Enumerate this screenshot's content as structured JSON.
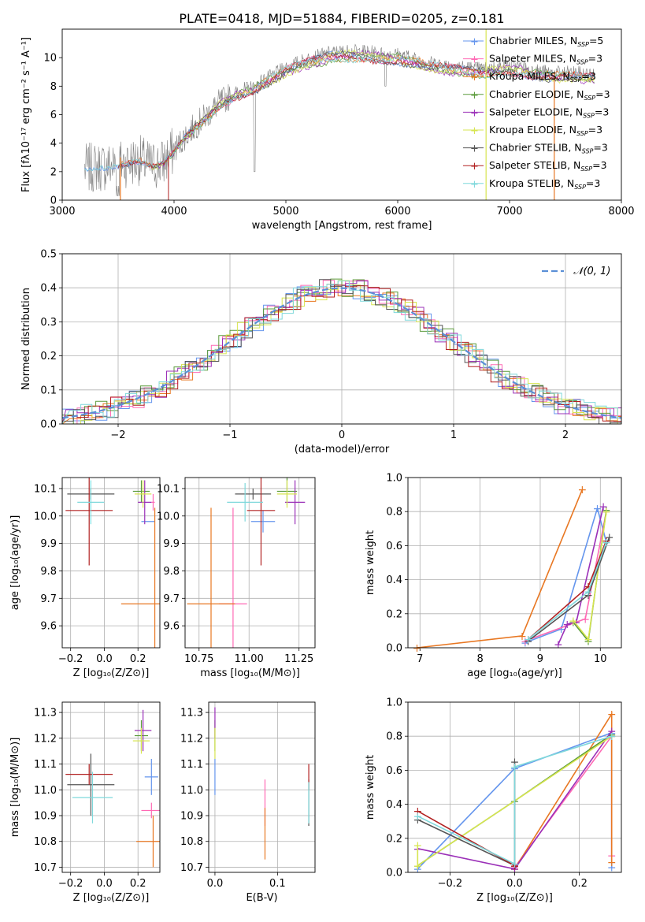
{
  "title": "PLATE=0418, MJD=51884, FIBERID=0205, z=0.181",
  "colors": {
    "chabrier_miles": "#6495ED",
    "salpeter_miles": "#FF69B4",
    "kroupa_miles": "#E87722",
    "chabrier_elodie": "#5A9A3A",
    "salpeter_elodie": "#9B30B8",
    "kroupa_elodie": "#D7E550",
    "chabrier_stelib": "#555555",
    "salpeter_stelib": "#B22222",
    "kroupa_stelib": "#7FD8DB",
    "data": "#808080",
    "gauss": "#5B8FD6"
  },
  "chart_data": [
    {
      "type": "line",
      "title": "PLATE=0418, MJD=51884, FIBERID=0205, z=0.181",
      "xlabel": "wavelength [Angstrom, rest frame]",
      "ylabel": "Flux [fλ10⁻¹⁷ erg cm⁻² s⁻¹ A⁻¹]",
      "xlim": [
        3000,
        8000
      ],
      "ylim": [
        0,
        12
      ],
      "xticks": [
        "3000",
        "4000",
        "5000",
        "6000",
        "7000",
        "8000"
      ],
      "yticks": [
        "0",
        "2",
        "4",
        "6",
        "8",
        "10"
      ],
      "legend_position": "right",
      "legend": [
        {
          "key": "chabrier_miles",
          "label": "Chabrier MILES, N",
          "sub": "SSP",
          "suffix": "=5"
        },
        {
          "key": "salpeter_miles",
          "label": "Salpeter MILES, N",
          "sub": "SSP",
          "suffix": "=3"
        },
        {
          "key": "kroupa_miles",
          "label": "Kroupa MILES, N",
          "sub": "SSP",
          "suffix": "=3"
        },
        {
          "key": "chabrier_elodie",
          "label": "Chabrier ELODIE, N",
          "sub": "SSP",
          "suffix": "=3"
        },
        {
          "key": "salpeter_elodie",
          "label": "Salpeter ELODIE, N",
          "sub": "SSP",
          "suffix": "=3"
        },
        {
          "key": "kroupa_elodie",
          "label": "Kroupa ELODIE, N",
          "sub": "SSP",
          "suffix": "=3"
        },
        {
          "key": "chabrier_stelib",
          "label": "Chabrier STELIB, N",
          "sub": "SSP",
          "suffix": "=3"
        },
        {
          "key": "salpeter_stelib",
          "label": "Salpeter STELIB, N",
          "sub": "SSP",
          "suffix": "=3"
        },
        {
          "key": "kroupa_stelib",
          "label": "Kroupa STELIB, N",
          "sub": "SSP",
          "suffix": "=3"
        }
      ],
      "continuum": {
        "x": [
          3200,
          3300,
          3400,
          3500,
          3600,
          3700,
          3800,
          3900,
          4000,
          4100,
          4200,
          4300,
          4400,
          4500,
          4600,
          4700,
          4800,
          4900,
          5000,
          5100,
          5200,
          5300,
          5400,
          5500,
          5600,
          5700,
          5800,
          5900,
          6000,
          6100,
          6200,
          6300,
          6400,
          6500,
          6600,
          6700,
          6800,
          6900,
          7000,
          7100,
          7200,
          7300,
          7400,
          7500,
          7600,
          7700
        ],
        "y": [
          2.2,
          2.3,
          2.4,
          2.5,
          2.7,
          2.8,
          2.4,
          2.6,
          3.5,
          4.5,
          5.3,
          6.0,
          6.8,
          7.3,
          7.7,
          7.9,
          8.4,
          8.8,
          9.3,
          9.6,
          9.9,
          10.1,
          10.3,
          10.4,
          10.4,
          10.4,
          10.3,
          10.2,
          10.2,
          10.0,
          9.8,
          9.6,
          9.5,
          9.4,
          9.3,
          9.2,
          9.2,
          9.3,
          9.4,
          9.3,
          9.1,
          9.0,
          8.9,
          8.9,
          8.9,
          8.8
        ]
      }
    },
    {
      "type": "line",
      "xlabel": "(data-model)/error",
      "ylabel": "Normed distribution",
      "xlim": [
        -2.5,
        2.5
      ],
      "ylim": [
        0,
        0.5
      ],
      "xticks": [
        "−2",
        "−1",
        "0",
        "1",
        "2"
      ],
      "yticks": [
        "0.0",
        "0.1",
        "0.2",
        "0.3",
        "0.4",
        "0.5"
      ],
      "legend": {
        "label": "𝒩(0, 1)"
      },
      "legend_position": "top-right",
      "series": [
        {
          "name": "𝒩(0, 1)",
          "mu": 0,
          "sigma": 1
        }
      ]
    },
    {
      "type": "scatter",
      "xlabel": "Z [log₁₀(Z/Z⊙)]",
      "ylabel": "age  [log₁₀(age/yr)]",
      "xlim": [
        -0.25,
        0.33
      ],
      "ylim": [
        9.52,
        10.14
      ],
      "xticks": [
        "−0.2",
        "0.0",
        "0.2"
      ],
      "xtick_values": [
        -0.2,
        0,
        0.2
      ],
      "yticks": [
        "9.6",
        "9.7",
        "9.8",
        "9.9",
        "10.0",
        "10.1"
      ],
      "ytick_values": [
        9.6,
        9.7,
        9.8,
        9.9,
        10.0,
        10.1
      ],
      "points": [
        {
          "s": "chabrier_miles",
          "x": 0.26,
          "y": 9.98,
          "xe": 0.04,
          "ye": 0.0
        },
        {
          "s": "salpeter_miles",
          "x": 0.29,
          "y": 10.05,
          "xe": 0.01,
          "ye": 0.03
        },
        {
          "s": "kroupa_miles",
          "x": 0.3,
          "y": 9.68,
          "xe": 0.2,
          "ye": 0.35
        },
        {
          "s": "chabrier_elodie",
          "x": 0.22,
          "y": 10.09,
          "xe": 0.05,
          "ye": 0.04
        },
        {
          "s": "salpeter_elodie",
          "x": 0.24,
          "y": 10.05,
          "xe": 0.04,
          "ye": 0.08
        },
        {
          "s": "kroupa_elodie",
          "x": 0.23,
          "y": 10.08,
          "xe": 0.05,
          "ye": 0.05
        },
        {
          "s": "chabrier_stelib",
          "x": -0.08,
          "y": 10.08,
          "xe": 0.14,
          "ye": 0.02
        },
        {
          "s": "salpeter_stelib",
          "x": -0.09,
          "y": 10.02,
          "xe": 0.14,
          "ye": 0.2
        },
        {
          "s": "kroupa_stelib",
          "x": -0.08,
          "y": 10.05,
          "xe": 0.08,
          "ye": 0.08
        }
      ]
    },
    {
      "type": "scatter",
      "xlabel": "mass [log₁₀(M/M⊙)]",
      "xlim": [
        10.68,
        11.33
      ],
      "ylim": [
        9.52,
        10.14
      ],
      "xticks": [
        "10.75",
        "11.00",
        "11.25"
      ],
      "xtick_values": [
        10.75,
        11.0,
        11.25
      ],
      "yticks": [
        "9.6",
        "9.7",
        "9.8",
        "9.9",
        "10.0",
        "10.1"
      ],
      "ytick_values": [
        9.6,
        9.7,
        9.8,
        9.9,
        10.0,
        10.1
      ],
      "points": [
        {
          "s": "chabrier_miles",
          "x": 11.07,
          "y": 9.98,
          "xe": 0.06,
          "ye": 0.04
        },
        {
          "s": "salpeter_miles",
          "x": 10.92,
          "y": 9.68,
          "xe": 0.07,
          "ye": 0.35
        },
        {
          "s": "kroupa_miles",
          "x": 10.81,
          "y": 9.68,
          "xe": 0.12,
          "ye": 0.35
        },
        {
          "s": "chabrier_elodie",
          "x": 11.19,
          "y": 10.09,
          "xe": 0.05,
          "ye": 0.05
        },
        {
          "s": "salpeter_elodie",
          "x": 11.23,
          "y": 10.05,
          "xe": 0.05,
          "ye": 0.08
        },
        {
          "s": "kroupa_elodie",
          "x": 11.19,
          "y": 10.08,
          "xe": 0.05,
          "ye": 0.05
        },
        {
          "s": "chabrier_stelib",
          "x": 11.02,
          "y": 10.08,
          "xe": 0.09,
          "ye": 0.02
        },
        {
          "s": "salpeter_stelib",
          "x": 11.06,
          "y": 10.02,
          "xe": 0.07,
          "ye": 0.2
        },
        {
          "s": "kroupa_stelib",
          "x": 10.98,
          "y": 10.05,
          "xe": 0.09,
          "ye": 0.07
        }
      ]
    },
    {
      "type": "line",
      "xlabel": "age  [log₁₀(age/yr)]",
      "ylabel": "mass weight",
      "xlim": [
        6.8,
        10.35
      ],
      "ylim": [
        0,
        1.0
      ],
      "xticks": [
        "7",
        "8",
        "9",
        "10"
      ],
      "xtick_values": [
        7,
        8,
        9,
        10
      ],
      "yticks": [
        "0.0",
        "0.2",
        "0.4",
        "0.6",
        "0.8",
        "1.0"
      ],
      "ytick_values": [
        0,
        0.2,
        0.4,
        0.6,
        0.8,
        1.0
      ],
      "series": [
        {
          "s": "chabrier_miles",
          "x": [
            8.75,
            9.35,
            9.95,
            10.1
          ],
          "y": [
            0.03,
            0.11,
            0.82,
            0.62
          ]
        },
        {
          "s": "salpeter_miles",
          "x": [
            8.75,
            9.75,
            10.1
          ],
          "y": [
            0.04,
            0.17,
            0.8
          ]
        },
        {
          "s": "kroupa_miles",
          "x": [
            6.95,
            8.7,
            9.7
          ],
          "y": [
            0.0,
            0.07,
            0.93
          ]
        },
        {
          "s": "chabrier_elodie",
          "x": [
            9.55,
            9.8,
            10.1
          ],
          "y": [
            0.15,
            0.04,
            0.81
          ]
        },
        {
          "s": "salpeter_elodie",
          "x": [
            9.3,
            9.45,
            9.6,
            10.05
          ],
          "y": [
            0.02,
            0.14,
            0.15,
            0.83
          ]
        },
        {
          "s": "kroupa_elodie",
          "x": [
            9.55,
            9.8,
            10.1
          ],
          "y": [
            0.16,
            0.05,
            0.8
          ]
        },
        {
          "s": "chabrier_stelib",
          "x": [
            8.8,
            9.8,
            10.15
          ],
          "y": [
            0.04,
            0.31,
            0.65
          ]
        },
        {
          "s": "salpeter_stelib",
          "x": [
            8.8,
            9.8,
            10.1
          ],
          "y": [
            0.05,
            0.36,
            0.63
          ]
        },
        {
          "s": "kroupa_stelib",
          "x": [
            8.8,
            9.8,
            10.1
          ],
          "y": [
            0.05,
            0.33,
            0.62
          ]
        }
      ]
    },
    {
      "type": "scatter",
      "xlabel": "Z [log₁₀(Z/Z⊙)]",
      "ylabel": "mass [log₁₀(M/M⊙)]",
      "xlim": [
        -0.25,
        0.33
      ],
      "ylim": [
        10.68,
        11.34
      ],
      "xticks": [
        "−0.2",
        "0.0",
        "0.2"
      ],
      "xtick_values": [
        -0.2,
        0,
        0.2
      ],
      "yticks": [
        "10.7",
        "10.8",
        "10.9",
        "11.0",
        "11.1",
        "11.2",
        "11.3"
      ],
      "ytick_values": [
        10.7,
        10.8,
        10.9,
        11.0,
        11.1,
        11.2,
        11.3
      ],
      "points": [
        {
          "s": "chabrier_miles",
          "x": 0.28,
          "y": 11.05,
          "xe": 0.04,
          "ye": 0.07
        },
        {
          "s": "salpeter_miles",
          "x": 0.28,
          "y": 10.92,
          "xe": 0.06,
          "ye": 0.03
        },
        {
          "s": "kroupa_miles",
          "x": 0.29,
          "y": 10.8,
          "xe": 0.1,
          "ye": 0.1
        },
        {
          "s": "chabrier_elodie",
          "x": 0.22,
          "y": 11.21,
          "xe": 0.04,
          "ye": 0.06
        },
        {
          "s": "salpeter_elodie",
          "x": 0.23,
          "y": 11.23,
          "xe": 0.05,
          "ye": 0.08
        },
        {
          "s": "kroupa_elodie",
          "x": 0.22,
          "y": 11.19,
          "xe": 0.05,
          "ye": 0.05
        },
        {
          "s": "chabrier_stelib",
          "x": -0.08,
          "y": 11.02,
          "xe": 0.14,
          "ye": 0.12
        },
        {
          "s": "salpeter_stelib",
          "x": -0.09,
          "y": 11.06,
          "xe": 0.14,
          "ye": 0.04
        },
        {
          "s": "kroupa_stelib",
          "x": -0.07,
          "y": 10.97,
          "xe": 0.12,
          "ye": 0.1
        }
      ]
    },
    {
      "type": "scatter",
      "xlabel": "E(B-V)",
      "xlim": [
        -0.01,
        0.16
      ],
      "ylim": [
        10.68,
        11.34
      ],
      "xticks": [
        "0.0",
        "0.1"
      ],
      "xtick_values": [
        0,
        0.1
      ],
      "yticks": [
        "10.7",
        "10.8",
        "10.9",
        "11.0",
        "11.1",
        "11.2",
        "11.3"
      ],
      "ytick_values": [
        10.7,
        10.8,
        10.9,
        11.0,
        11.1,
        11.2,
        11.3
      ],
      "points": [
        {
          "s": "chabrier_miles",
          "x": 0.0,
          "y": 11.05,
          "xe": 0,
          "ye": 0.07
        },
        {
          "s": "salpeter_miles",
          "x": 0.08,
          "y": 10.95,
          "xe": 0,
          "ye": 0.09
        },
        {
          "s": "kroupa_miles",
          "x": 0.08,
          "y": 10.83,
          "xe": 0,
          "ye": 0.1
        },
        {
          "s": "chabrier_elodie",
          "x": 0.0,
          "y": 11.21,
          "xe": 0,
          "ye": 0.06
        },
        {
          "s": "salpeter_elodie",
          "x": 0.0,
          "y": 11.26,
          "xe": 0,
          "ye": 0.06
        },
        {
          "s": "kroupa_elodie",
          "x": 0.0,
          "y": 11.18,
          "xe": 0,
          "ye": 0.06
        },
        {
          "s": "chabrier_stelib",
          "x": 0.15,
          "y": 10.95,
          "xe": 0,
          "ye": 0.09
        },
        {
          "s": "salpeter_stelib",
          "x": 0.15,
          "y": 11.05,
          "xe": 0,
          "ye": 0.05
        },
        {
          "s": "kroupa_stelib",
          "x": 0.15,
          "y": 10.95,
          "xe": 0,
          "ye": 0.08
        }
      ]
    },
    {
      "type": "line",
      "xlabel": "Z [log₁₀(Z/Z⊙)]",
      "ylabel": "mass weight",
      "xlim": [
        -0.33,
        0.33
      ],
      "ylim": [
        0,
        1.0
      ],
      "xticks": [
        "−0.2",
        "0.0",
        "0.2"
      ],
      "xtick_values": [
        -0.2,
        0,
        0.2
      ],
      "yticks": [
        "0.0",
        "0.2",
        "0.4",
        "0.6",
        "0.8",
        "1.0"
      ],
      "ytick_values": [
        0,
        0.2,
        0.4,
        0.6,
        0.8,
        1.0
      ],
      "series": [
        {
          "s": "chabrier_miles",
          "x": [
            -0.3,
            0.0,
            0.3,
            0.3
          ],
          "y": [
            0.02,
            0.61,
            0.82,
            0.03
          ]
        },
        {
          "s": "salpeter_miles",
          "x": [
            0.0,
            0.3,
            0.3
          ],
          "y": [
            0.03,
            0.8,
            0.1
          ]
        },
        {
          "s": "kroupa_miles",
          "x": [
            0.0,
            0.3,
            0.3
          ],
          "y": [
            0.02,
            0.93,
            0.06
          ]
        },
        {
          "s": "chabrier_elodie",
          "x": [
            -0.3,
            0.0,
            0.3
          ],
          "y": [
            0.04,
            0.42,
            0.81
          ]
        },
        {
          "s": "salpeter_elodie",
          "x": [
            -0.3,
            0.0,
            0.3
          ],
          "y": [
            0.14,
            0.02,
            0.83
          ]
        },
        {
          "s": "kroupa_elodie",
          "x": [
            -0.3,
            -0.3,
            0.3
          ],
          "y": [
            0.16,
            0.04,
            0.8
          ]
        },
        {
          "s": "chabrier_stelib",
          "x": [
            -0.3,
            0.0,
            0.0
          ],
          "y": [
            0.31,
            0.04,
            0.65
          ]
        },
        {
          "s": "salpeter_stelib",
          "x": [
            -0.3,
            0.0,
            0.0
          ],
          "y": [
            0.36,
            0.04,
            0.04
          ]
        },
        {
          "s": "kroupa_stelib",
          "x": [
            -0.3,
            0.0,
            0.0,
            0.3
          ],
          "y": [
            0.33,
            0.05,
            0.62,
            0.8
          ]
        }
      ]
    }
  ]
}
